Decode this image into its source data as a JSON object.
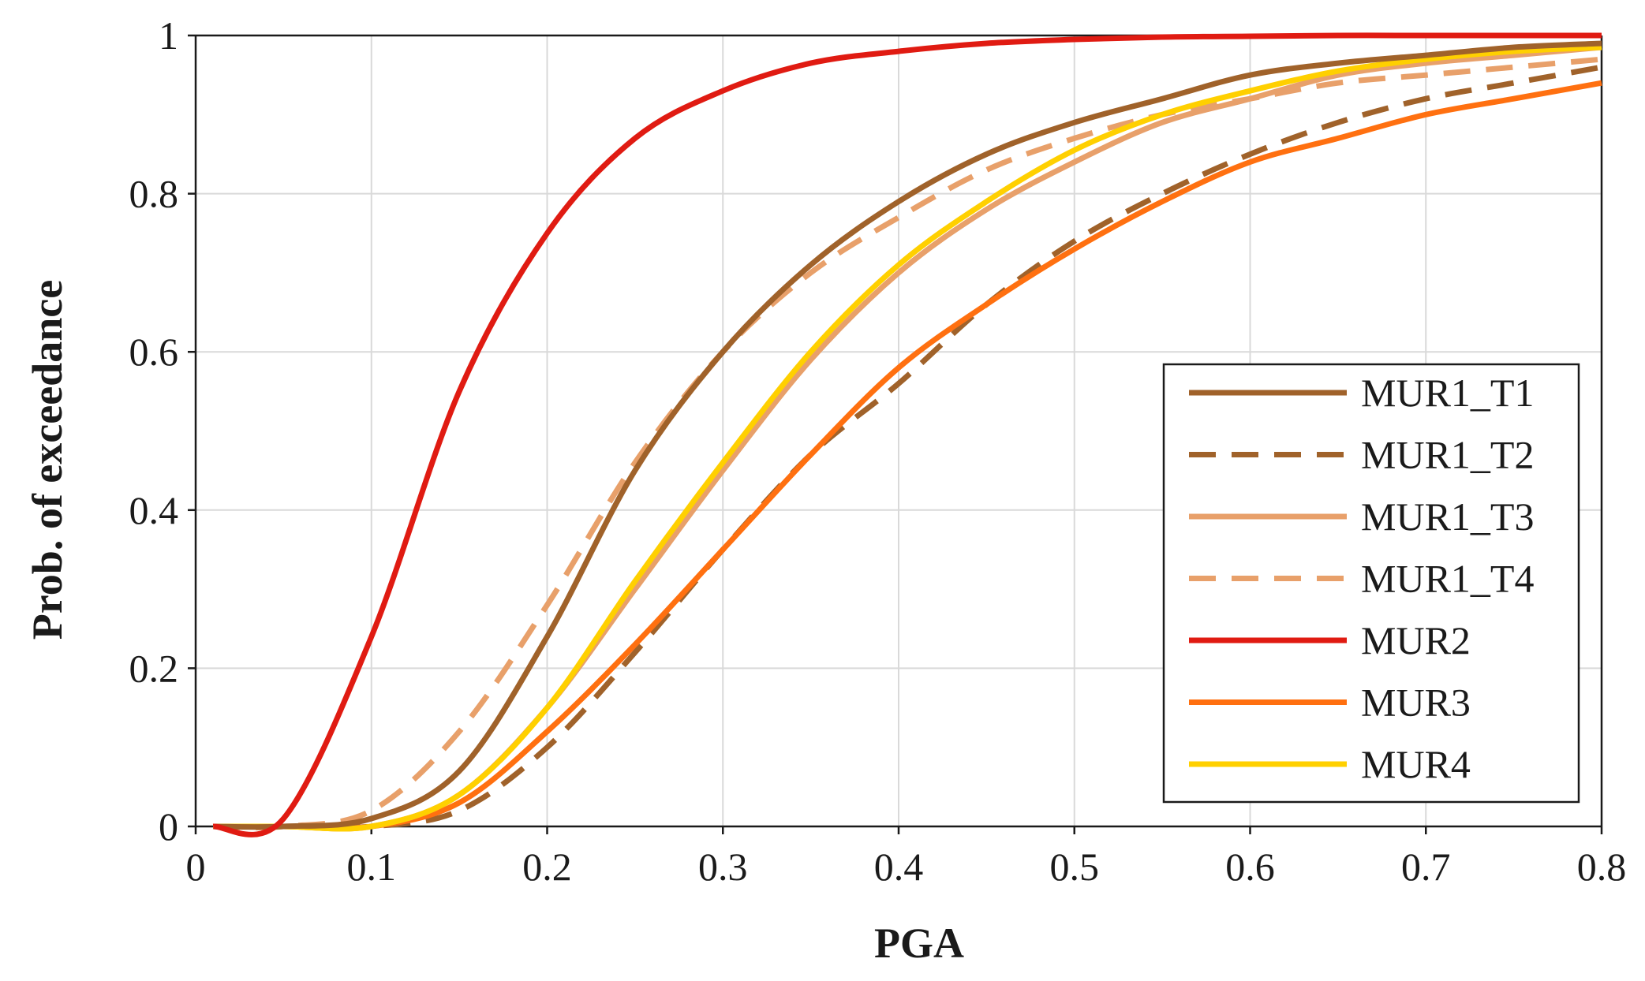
{
  "chart_data": {
    "type": "line",
    "xlabel": "PGA",
    "ylabel": "Prob. of exceedance",
    "xlim": [
      0,
      0.8
    ],
    "ylim": [
      0,
      1
    ],
    "x_ticks": [
      "0",
      "0.1",
      "0.2",
      "0.3",
      "0.4",
      "0.5",
      "0.6",
      "0.7",
      "0.8"
    ],
    "y_ticks": [
      "0",
      "0.2",
      "0.4",
      "0.6",
      "0.8",
      "1"
    ],
    "grid": true,
    "legend_position": "bottom-right",
    "x": [
      0.01,
      0.05,
      0.1,
      0.15,
      0.2,
      0.25,
      0.3,
      0.35,
      0.4,
      0.45,
      0.5,
      0.55,
      0.6,
      0.65,
      0.7,
      0.75,
      0.8
    ],
    "series": [
      {
        "name": "MUR1_T1",
        "color": "#a0622a",
        "dash": "solid",
        "values": [
          0.0,
          0.0,
          0.01,
          0.07,
          0.24,
          0.45,
          0.6,
          0.71,
          0.79,
          0.85,
          0.89,
          0.92,
          0.95,
          0.965,
          0.975,
          0.985,
          0.99
        ]
      },
      {
        "name": "MUR1_T2",
        "color": "#a0622a",
        "dash": "dashed",
        "values": [
          0.0,
          0.0,
          0.0,
          0.02,
          0.1,
          0.22,
          0.35,
          0.47,
          0.56,
          0.66,
          0.74,
          0.8,
          0.85,
          0.89,
          0.92,
          0.94,
          0.96
        ]
      },
      {
        "name": "MUR1_T3",
        "color": "#e8a06a",
        "dash": "solid",
        "values": [
          0.0,
          0.0,
          0.0,
          0.04,
          0.15,
          0.3,
          0.45,
          0.59,
          0.7,
          0.78,
          0.84,
          0.89,
          0.92,
          0.95,
          0.965,
          0.975,
          0.985
        ]
      },
      {
        "name": "MUR1_T4",
        "color": "#e8a06a",
        "dash": "dashed",
        "values": [
          0.0,
          0.0,
          0.02,
          0.12,
          0.28,
          0.46,
          0.6,
          0.7,
          0.77,
          0.83,
          0.87,
          0.9,
          0.92,
          0.94,
          0.95,
          0.96,
          0.97
        ]
      },
      {
        "name": "MUR2",
        "color": "#e01b12",
        "dash": "solid",
        "values": [
          0.0,
          0.01,
          0.24,
          0.55,
          0.75,
          0.87,
          0.93,
          0.965,
          0.98,
          0.99,
          0.995,
          0.998,
          0.999,
          1.0,
          1.0,
          1.0,
          1.0
        ]
      },
      {
        "name": "MUR3",
        "color": "#ff7010",
        "dash": "solid",
        "values": [
          0.0,
          0.0,
          0.0,
          0.03,
          0.12,
          0.23,
          0.35,
          0.47,
          0.58,
          0.66,
          0.73,
          0.79,
          0.84,
          0.87,
          0.9,
          0.92,
          0.94
        ]
      },
      {
        "name": "MUR4",
        "color": "#ffd000",
        "dash": "solid",
        "values": [
          0.0,
          0.0,
          0.0,
          0.04,
          0.15,
          0.31,
          0.46,
          0.6,
          0.71,
          0.79,
          0.855,
          0.9,
          0.93,
          0.955,
          0.97,
          0.98,
          0.985
        ]
      }
    ]
  }
}
